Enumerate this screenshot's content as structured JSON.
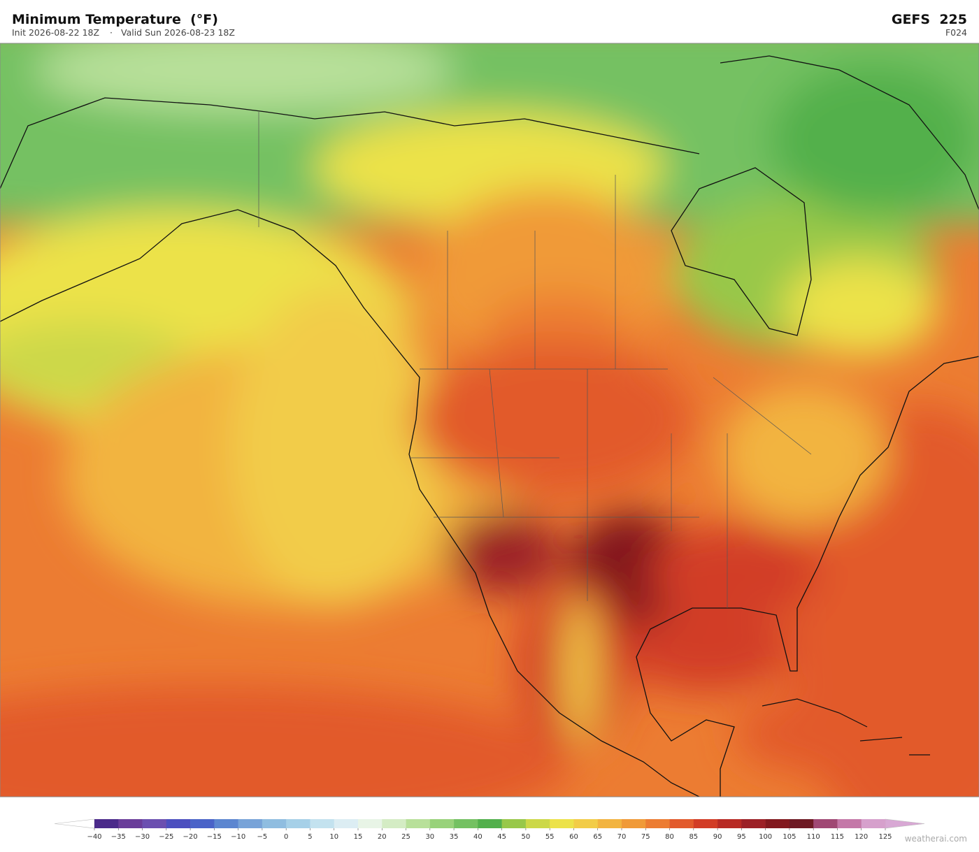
{
  "header": {
    "title": "Minimum Temperature  (°F)",
    "init": "Init 2026-08-22 18Z",
    "separator": "·",
    "valid": "Valid Sun 2026-08-23 18Z",
    "model": "GEFS  225",
    "forecast_hour": "F024"
  },
  "colorbar": {
    "ticks": [
      {
        "value": -40,
        "label": "−40"
      },
      {
        "value": -35,
        "label": "−35"
      },
      {
        "value": -30,
        "label": "−30"
      },
      {
        "value": -25,
        "label": "−25"
      },
      {
        "value": -20,
        "label": "−20"
      },
      {
        "value": -15,
        "label": "−15"
      },
      {
        "value": -10,
        "label": "−10"
      },
      {
        "value": -5,
        "label": "−5"
      },
      0,
      5,
      10,
      15,
      20,
      25,
      30,
      35,
      40,
      45,
      50,
      55,
      60,
      65,
      70,
      75,
      80,
      85,
      90,
      95,
      100,
      105,
      110,
      115,
      120,
      125
    ],
    "colors": [
      "#4b2a8a",
      "#6a3d9a",
      "#6b4fb0",
      "#4c4fbf",
      "#4a63c8",
      "#5c86d0",
      "#78a3d8",
      "#8fbde0",
      "#a6d0e8",
      "#c3e2ef",
      "#dcedf3",
      "#e8f4e6",
      "#d4ecc4",
      "#b8e09a",
      "#98d27a",
      "#74c162",
      "#52b04c",
      "#98c84a",
      "#ccd848",
      "#ece24a",
      "#f2cc48",
      "#f2b440",
      "#f09a38",
      "#ec7c32",
      "#e25a2c",
      "#d23c26",
      "#b82a24",
      "#9c2026",
      "#82181e",
      "#6e1a24",
      "#a04874",
      "#c478a8",
      "#d6a0cc"
    ],
    "under_color": "#ffffff",
    "over_color": "#d8a8d4"
  },
  "footer": {
    "watermark": "weatherai.com"
  }
}
